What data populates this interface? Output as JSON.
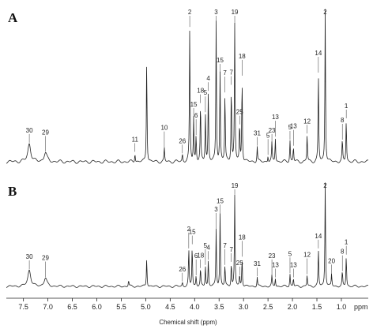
{
  "chart_data": {
    "type": "line",
    "panels": [
      {
        "id": "A",
        "peaks": [
          {
            "label": "30",
            "ppm": 7.38,
            "h": 0.12
          },
          {
            "label": "29",
            "ppm": 7.05,
            "h": 0.06
          },
          {
            "label": "11",
            "ppm": 5.22,
            "h": 0.06
          },
          {
            "label": "10",
            "ppm": 4.62,
            "h": 0.09
          },
          {
            "label": "26",
            "ppm": 4.25,
            "h": 0.05
          },
          {
            "label": "2",
            "ppm": 4.1,
            "h": 0.88
          },
          {
            "label": "15",
            "ppm": 4.02,
            "h": 0.29
          },
          {
            "label": "6",
            "ppm": 3.97,
            "h": 0.17
          },
          {
            "label": "18",
            "ppm": 3.88,
            "h": 0.38
          },
          {
            "label": "5",
            "ppm": 3.78,
            "h": 0.32
          },
          {
            "label": "4",
            "ppm": 3.72,
            "h": 0.46
          },
          {
            "label": "3",
            "ppm": 3.56,
            "h": 0.92
          },
          {
            "label": "15",
            "ppm": 3.48,
            "h": 0.58
          },
          {
            "label": "7",
            "ppm": 3.38,
            "h": 0.45
          },
          {
            "label": "7",
            "ppm": 3.25,
            "h": 0.5
          },
          {
            "label": "19",
            "ppm": 3.18,
            "h": 0.9
          },
          {
            "label": "25",
            "ppm": 3.08,
            "h": 0.24
          },
          {
            "label": "18",
            "ppm": 3.03,
            "h": 0.56
          },
          {
            "label": "31",
            "ppm": 2.72,
            "h": 0.1
          },
          {
            "label": "5",
            "ppm": 2.5,
            "h": 0.04
          },
          {
            "label": "23",
            "ppm": 2.42,
            "h": 0.12
          },
          {
            "label": "13",
            "ppm": 2.35,
            "h": 0.16
          },
          {
            "label": "5",
            "ppm": 2.05,
            "h": 0.14
          },
          {
            "label": "13",
            "ppm": 1.98,
            "h": 0.1
          },
          {
            "label": "12",
            "ppm": 1.7,
            "h": 0.18
          },
          {
            "label": "14",
            "ppm": 1.47,
            "h": 0.58
          },
          {
            "label": "2",
            "ppm": 1.33,
            "h": 1.0
          },
          {
            "label": "8",
            "ppm": 0.98,
            "h": 0.14
          },
          {
            "label": "1",
            "ppm": 0.9,
            "h": 0.28
          }
        ],
        "extra_peaks": [
          {
            "ppm": 4.98,
            "h": 0.68
          }
        ]
      },
      {
        "id": "B",
        "peaks": [
          {
            "label": "30",
            "ppm": 7.38,
            "h": 0.16
          },
          {
            "label": "29",
            "ppm": 7.05,
            "h": 0.08
          },
          {
            "label": "26",
            "ppm": 4.25,
            "h": 0.04
          },
          {
            "label": "2",
            "ppm": 4.12,
            "h": 0.36
          },
          {
            "label": "15",
            "ppm": 4.05,
            "h": 0.4
          },
          {
            "label": "6",
            "ppm": 3.97,
            "h": 0.1
          },
          {
            "label": "18",
            "ppm": 3.88,
            "h": 0.17
          },
          {
            "label": "5",
            "ppm": 3.78,
            "h": 0.2
          },
          {
            "label": "4",
            "ppm": 3.72,
            "h": 0.25
          },
          {
            "label": "3",
            "ppm": 3.56,
            "h": 0.55
          },
          {
            "label": "15",
            "ppm": 3.48,
            "h": 0.7
          },
          {
            "label": "7",
            "ppm": 3.38,
            "h": 0.2
          },
          {
            "label": "7",
            "ppm": 3.25,
            "h": 0.23
          },
          {
            "label": "19",
            "ppm": 3.18,
            "h": 0.88
          },
          {
            "label": "25",
            "ppm": 3.08,
            "h": 0.1
          },
          {
            "label": "18",
            "ppm": 3.03,
            "h": 0.28
          },
          {
            "label": "31",
            "ppm": 2.72,
            "h": 0.09
          },
          {
            "label": "23",
            "ppm": 2.42,
            "h": 0.1
          },
          {
            "label": "13",
            "ppm": 2.35,
            "h": 0.08
          },
          {
            "label": "5",
            "ppm": 2.05,
            "h": 0.12
          },
          {
            "label": "13",
            "ppm": 1.98,
            "h": 0.08
          },
          {
            "label": "12",
            "ppm": 1.7,
            "h": 0.11
          },
          {
            "label": "14",
            "ppm": 1.47,
            "h": 0.36
          },
          {
            "label": "2",
            "ppm": 1.33,
            "h": 1.0
          },
          {
            "label": "20",
            "ppm": 1.2,
            "h": 0.12
          },
          {
            "label": "8",
            "ppm": 0.98,
            "h": 0.14
          },
          {
            "label": "1",
            "ppm": 0.9,
            "h": 0.3
          }
        ],
        "extra_peaks": [
          {
            "ppm": 5.35,
            "h": 0.06
          },
          {
            "ppm": 4.98,
            "h": 0.28
          }
        ]
      }
    ],
    "x_ticks": [
      "7.5",
      "7.0",
      "6.5",
      "6.0",
      "5.5",
      "5.0",
      "4.5",
      "4.0",
      "3.5",
      "3.0",
      "2.5",
      "2.0",
      "1.5",
      "1.0",
      "ppm"
    ],
    "x_tick_values": [
      7.5,
      7.0,
      6.5,
      6.0,
      5.5,
      5.0,
      4.5,
      4.0,
      3.5,
      3.0,
      2.5,
      2.0,
      1.5,
      1.0
    ],
    "xlim": [
      7.85,
      0.45
    ],
    "xlabel": "Chemical shift (ppm)",
    "grid": false,
    "legend": "none"
  }
}
